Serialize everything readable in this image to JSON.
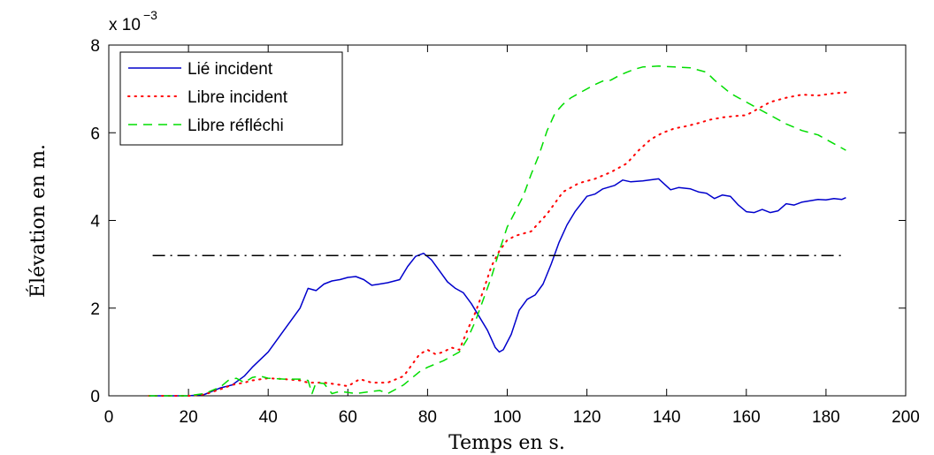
{
  "chart_data": {
    "type": "line",
    "title": "",
    "xlabel": "Temps en s.",
    "ylabel": "Élévation en m.",
    "xlim": [
      0,
      200
    ],
    "ylim": [
      0,
      8
    ],
    "x_ticks": [
      "0",
      "20",
      "40",
      "60",
      "80",
      "100",
      "120",
      "140",
      "160",
      "180",
      "200"
    ],
    "y_ticks": [
      "0",
      "2",
      "4",
      "6",
      "8"
    ],
    "y_multiplier": {
      "base": "x 10",
      "exponent": "−3"
    },
    "grid": false,
    "legend_position": "top-left",
    "series": [
      {
        "name": "Lié incident",
        "color": "#0000cc",
        "style": "solid",
        "points": [
          [
            10,
            0
          ],
          [
            20,
            0
          ],
          [
            24,
            0.03
          ],
          [
            28,
            0.18
          ],
          [
            31,
            0.25
          ],
          [
            34,
            0.45
          ],
          [
            36,
            0.65
          ],
          [
            40,
            1.0
          ],
          [
            44,
            1.5
          ],
          [
            48,
            2.0
          ],
          [
            50,
            2.45
          ],
          [
            52,
            2.4
          ],
          [
            54,
            2.55
          ],
          [
            56,
            2.62
          ],
          [
            58,
            2.65
          ],
          [
            60,
            2.7
          ],
          [
            62,
            2.72
          ],
          [
            64,
            2.65
          ],
          [
            66,
            2.52
          ],
          [
            68,
            2.55
          ],
          [
            70,
            2.58
          ],
          [
            73,
            2.65
          ],
          [
            75,
            2.95
          ],
          [
            77,
            3.18
          ],
          [
            79,
            3.25
          ],
          [
            81,
            3.1
          ],
          [
            83,
            2.85
          ],
          [
            85,
            2.6
          ],
          [
            87,
            2.45
          ],
          [
            89,
            2.35
          ],
          [
            91,
            2.1
          ],
          [
            93,
            1.8
          ],
          [
            95,
            1.5
          ],
          [
            97,
            1.1
          ],
          [
            98,
            1.0
          ],
          [
            99,
            1.05
          ],
          [
            101,
            1.4
          ],
          [
            103,
            1.95
          ],
          [
            105,
            2.2
          ],
          [
            107,
            2.3
          ],
          [
            109,
            2.55
          ],
          [
            111,
            3.0
          ],
          [
            113,
            3.5
          ],
          [
            115,
            3.9
          ],
          [
            117,
            4.2
          ],
          [
            120,
            4.55
          ],
          [
            122,
            4.6
          ],
          [
            124,
            4.72
          ],
          [
            127,
            4.8
          ],
          [
            129,
            4.92
          ],
          [
            131,
            4.88
          ],
          [
            134,
            4.9
          ],
          [
            138,
            4.95
          ],
          [
            141,
            4.7
          ],
          [
            143,
            4.75
          ],
          [
            146,
            4.72
          ],
          [
            148,
            4.65
          ],
          [
            150,
            4.62
          ],
          [
            152,
            4.5
          ],
          [
            154,
            4.58
          ],
          [
            156,
            4.55
          ],
          [
            158,
            4.35
          ],
          [
            160,
            4.2
          ],
          [
            162,
            4.18
          ],
          [
            164,
            4.25
          ],
          [
            166,
            4.18
          ],
          [
            168,
            4.22
          ],
          [
            170,
            4.38
          ],
          [
            172,
            4.35
          ],
          [
            174,
            4.42
          ],
          [
            176,
            4.45
          ],
          [
            178,
            4.48
          ],
          [
            180,
            4.47
          ],
          [
            182,
            4.5
          ],
          [
            184,
            4.48
          ],
          [
            185,
            4.52
          ]
        ]
      },
      {
        "name": "Libre incident",
        "color": "#ff0000",
        "style": "dotted",
        "points": [
          [
            10,
            0
          ],
          [
            20,
            0
          ],
          [
            24,
            0.03
          ],
          [
            28,
            0.15
          ],
          [
            31,
            0.25
          ],
          [
            34,
            0.3
          ],
          [
            36,
            0.35
          ],
          [
            40,
            0.4
          ],
          [
            44,
            0.38
          ],
          [
            48,
            0.35
          ],
          [
            50,
            0.3
          ],
          [
            54,
            0.3
          ],
          [
            58,
            0.25
          ],
          [
            60,
            0.22
          ],
          [
            63,
            0.38
          ],
          [
            66,
            0.3
          ],
          [
            70,
            0.3
          ],
          [
            74,
            0.45
          ],
          [
            76,
            0.7
          ],
          [
            78,
            0.95
          ],
          [
            80,
            1.05
          ],
          [
            82,
            0.95
          ],
          [
            84,
            1.0
          ],
          [
            86,
            1.1
          ],
          [
            88,
            1.05
          ],
          [
            90,
            1.5
          ],
          [
            92,
            1.9
          ],
          [
            94,
            2.4
          ],
          [
            96,
            2.95
          ],
          [
            98,
            3.3
          ],
          [
            100,
            3.55
          ],
          [
            102,
            3.65
          ],
          [
            104,
            3.7
          ],
          [
            106,
            3.75
          ],
          [
            108,
            3.95
          ],
          [
            110,
            4.15
          ],
          [
            112,
            4.4
          ],
          [
            114,
            4.65
          ],
          [
            116,
            4.75
          ],
          [
            118,
            4.85
          ],
          [
            122,
            4.95
          ],
          [
            126,
            5.1
          ],
          [
            130,
            5.3
          ],
          [
            133,
            5.6
          ],
          [
            136,
            5.85
          ],
          [
            139,
            6.0
          ],
          [
            142,
            6.1
          ],
          [
            145,
            6.15
          ],
          [
            148,
            6.22
          ],
          [
            151,
            6.3
          ],
          [
            154,
            6.35
          ],
          [
            157,
            6.38
          ],
          [
            160,
            6.4
          ],
          [
            163,
            6.55
          ],
          [
            166,
            6.7
          ],
          [
            170,
            6.8
          ],
          [
            174,
            6.87
          ],
          [
            178,
            6.85
          ],
          [
            182,
            6.9
          ],
          [
            185,
            6.92
          ]
        ]
      },
      {
        "name": "Libre réfléchi",
        "color": "#00dd00",
        "style": "dashed",
        "points": [
          [
            10,
            0
          ],
          [
            20,
            0
          ],
          [
            24,
            0.05
          ],
          [
            28,
            0.2
          ],
          [
            30,
            0.35
          ],
          [
            32,
            0.4
          ],
          [
            34,
            0.3
          ],
          [
            36,
            0.42
          ],
          [
            38,
            0.45
          ],
          [
            40,
            0.4
          ],
          [
            44,
            0.38
          ],
          [
            48,
            0.38
          ],
          [
            50,
            0.35
          ],
          [
            51,
            0.05
          ],
          [
            52,
            0.3
          ],
          [
            54,
            0.28
          ],
          [
            56,
            0.05
          ],
          [
            58,
            0.1
          ],
          [
            62,
            0.05
          ],
          [
            66,
            0.1
          ],
          [
            68,
            0.12
          ],
          [
            70,
            0.05
          ],
          [
            72,
            0.15
          ],
          [
            74,
            0.25
          ],
          [
            76,
            0.4
          ],
          [
            78,
            0.55
          ],
          [
            80,
            0.65
          ],
          [
            84,
            0.8
          ],
          [
            88,
            1.0
          ],
          [
            90,
            1.3
          ],
          [
            92,
            1.7
          ],
          [
            94,
            2.2
          ],
          [
            96,
            2.7
          ],
          [
            98,
            3.3
          ],
          [
            100,
            3.85
          ],
          [
            102,
            4.2
          ],
          [
            104,
            4.55
          ],
          [
            106,
            5.05
          ],
          [
            108,
            5.5
          ],
          [
            110,
            6.05
          ],
          [
            112,
            6.45
          ],
          [
            114,
            6.65
          ],
          [
            116,
            6.8
          ],
          [
            118,
            6.9
          ],
          [
            120,
            7.0
          ],
          [
            122,
            7.1
          ],
          [
            124,
            7.18
          ],
          [
            126,
            7.2
          ],
          [
            128,
            7.3
          ],
          [
            130,
            7.38
          ],
          [
            132,
            7.45
          ],
          [
            134,
            7.5
          ],
          [
            138,
            7.52
          ],
          [
            142,
            7.5
          ],
          [
            146,
            7.48
          ],
          [
            150,
            7.38
          ],
          [
            152,
            7.2
          ],
          [
            154,
            7.05
          ],
          [
            156,
            6.9
          ],
          [
            158,
            6.8
          ],
          [
            160,
            6.7
          ],
          [
            163,
            6.55
          ],
          [
            166,
            6.4
          ],
          [
            170,
            6.2
          ],
          [
            174,
            6.05
          ],
          [
            178,
            5.95
          ],
          [
            182,
            5.75
          ],
          [
            185,
            5.6
          ]
        ]
      },
      {
        "name": "",
        "color": "#000000",
        "style": "dashdot",
        "points": [
          [
            11,
            3.2
          ],
          [
            185,
            3.2
          ]
        ]
      }
    ]
  }
}
